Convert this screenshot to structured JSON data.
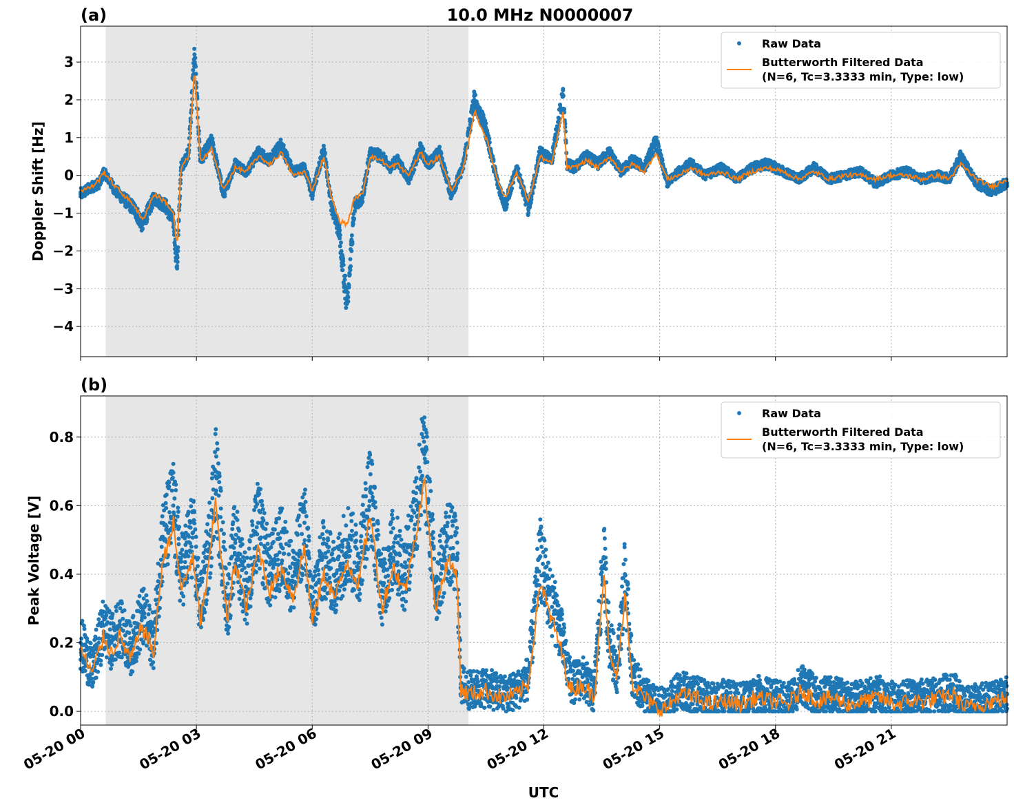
{
  "title": "10.0 MHz N0000007",
  "colors": {
    "raw": "#1f77b4",
    "filtered": "#ff7f0e",
    "shade": "#e6e6e6",
    "grid": "#b0b0b0"
  },
  "legend": {
    "raw_label": "Raw Data",
    "filtered_label_line1": "Butterworth Filtered Data",
    "filtered_label_line2": "(N=6, Tc=3.3333 min, Type: low)",
    "placement": "upper right"
  },
  "xaxis": {
    "label": "UTC",
    "ticks": [
      "05-20 00",
      "05-20 03",
      "05-20 06",
      "05-20 09",
      "05-20 12",
      "05-20 15",
      "05-20 18",
      "05-20 21"
    ],
    "tick_hours": [
      0,
      3,
      6,
      9,
      12,
      15,
      18,
      21
    ],
    "range_hours": [
      0,
      24
    ]
  },
  "chart_data": [
    {
      "type": "line",
      "panel_label": "(a)",
      "title": "10.0 MHz N0000007",
      "xlabel": "UTC",
      "ylabel": "Doppler Shift [Hz]",
      "ylim": [
        -4.8,
        3.95
      ],
      "yticks": [
        3,
        2,
        1,
        0,
        -1,
        -2,
        -3,
        -4
      ],
      "ytick_labels": [
        "3",
        "2",
        "1",
        "0",
        "−1",
        "−2",
        "−3",
        "−4"
      ],
      "grid": true,
      "legend": "upper right",
      "shaded_interval_hours": [
        0.65,
        10.05
      ],
      "series": [
        {
          "name": "Raw Data",
          "style": "scatter",
          "spread": 0.3,
          "x_hours": [
            0,
            0.3,
            0.5,
            0.6,
            0.9,
            1.2,
            1.4,
            1.6,
            1.9,
            2.2,
            2.4,
            2.5,
            2.6,
            2.8,
            2.95,
            3.1,
            3.4,
            3.7,
            4.0,
            4.3,
            4.6,
            4.9,
            5.2,
            5.5,
            5.8,
            6.0,
            6.3,
            6.5,
            6.7,
            6.9,
            7.1,
            7.3,
            7.5,
            7.8,
            8.0,
            8.2,
            8.5,
            8.8,
            9.0,
            9.3,
            9.6,
            9.9,
            10.2,
            10.5,
            10.8,
            11.0,
            11.3,
            11.6,
            11.9,
            12.2,
            12.5,
            12.6,
            12.8,
            13.1,
            13.4,
            13.7,
            14.0,
            14.3,
            14.6,
            14.9,
            15.2,
            15.5,
            15.8,
            16.2,
            16.6,
            17.0,
            17.4,
            17.8,
            18.2,
            18.6,
            19.0,
            19.4,
            19.8,
            20.2,
            20.6,
            21.0,
            21.4,
            21.8,
            22.2,
            22.5,
            22.8,
            23.2,
            23.6,
            24.0
          ],
          "y": [
            -0.5,
            -0.3,
            -0.2,
            0.1,
            -0.4,
            -0.7,
            -0.9,
            -1.3,
            -0.6,
            -0.8,
            -1.2,
            -2.4,
            0.2,
            0.6,
            3.2,
            0.4,
            0.9,
            -0.5,
            0.3,
            0.1,
            0.6,
            0.4,
            0.8,
            0.1,
            0.2,
            -0.5,
            0.7,
            -0.8,
            -1.5,
            -3.4,
            -0.8,
            -0.6,
            0.6,
            0.5,
            0.2,
            0.4,
            -0.1,
            0.7,
            0.3,
            0.6,
            -0.5,
            0.2,
            2.0,
            1.2,
            -0.2,
            -0.8,
            0.2,
            -0.9,
            0.6,
            0.4,
            2.1,
            0.3,
            0.2,
            0.5,
            0.3,
            0.6,
            0.1,
            0.4,
            0.2,
            0.9,
            -0.2,
            0.1,
            0.3,
            0.0,
            0.2,
            -0.1,
            0.2,
            0.3,
            0.1,
            -0.1,
            0.2,
            -0.1,
            0.0,
            0.1,
            -0.2,
            0.0,
            0.1,
            -0.1,
            0.0,
            -0.1,
            0.5,
            -0.2,
            -0.4,
            -0.2
          ]
        },
        {
          "name": "Butterworth Filtered Data (N=6, Tc=3.3333 min, Type: low)",
          "style": "line",
          "x_hours": [
            0,
            0.3,
            0.5,
            0.6,
            0.9,
            1.2,
            1.4,
            1.6,
            1.9,
            2.2,
            2.4,
            2.5,
            2.6,
            2.8,
            2.95,
            3.1,
            3.4,
            3.7,
            4.0,
            4.3,
            4.6,
            4.9,
            5.2,
            5.5,
            5.8,
            6.0,
            6.3,
            6.5,
            6.7,
            6.9,
            7.1,
            7.3,
            7.5,
            7.8,
            8.0,
            8.2,
            8.5,
            8.8,
            9.0,
            9.3,
            9.6,
            9.9,
            10.2,
            10.5,
            10.8,
            11.0,
            11.3,
            11.6,
            11.9,
            12.2,
            12.5,
            12.6,
            12.8,
            13.1,
            13.4,
            13.7,
            14.0,
            14.3,
            14.6,
            14.9,
            15.2,
            15.5,
            15.8,
            16.2,
            16.6,
            17.0,
            17.4,
            17.8,
            18.2,
            18.6,
            19.0,
            19.4,
            19.8,
            20.2,
            20.6,
            21.0,
            21.4,
            21.8,
            22.2,
            22.5,
            22.8,
            23.2,
            23.6,
            24.0
          ],
          "y": [
            -0.4,
            -0.3,
            -0.1,
            0.1,
            -0.3,
            -0.6,
            -0.8,
            -1.2,
            -0.5,
            -0.7,
            -1.0,
            -1.9,
            0.2,
            0.5,
            2.8,
            0.4,
            0.7,
            -0.4,
            0.2,
            0.1,
            0.5,
            0.3,
            0.6,
            0.0,
            0.1,
            -0.4,
            0.5,
            -0.6,
            -1.2,
            -1.3,
            -0.6,
            -0.5,
            0.5,
            0.4,
            0.2,
            0.3,
            0.0,
            0.6,
            0.3,
            0.5,
            -0.4,
            0.1,
            1.7,
            1.0,
            -0.1,
            -0.6,
            0.1,
            -0.7,
            0.5,
            0.3,
            1.7,
            0.2,
            0.2,
            0.4,
            0.2,
            0.5,
            0.1,
            0.3,
            0.1,
            0.6,
            -0.1,
            0.0,
            0.2,
            0.0,
            0.1,
            -0.1,
            0.1,
            0.2,
            0.1,
            -0.1,
            0.1,
            -0.1,
            0.0,
            0.0,
            -0.1,
            0.0,
            0.0,
            -0.1,
            0.0,
            -0.1,
            0.3,
            -0.1,
            -0.3,
            -0.1
          ]
        }
      ]
    },
    {
      "type": "line",
      "panel_label": "(b)",
      "xlabel": "UTC",
      "ylabel": "Peak Voltage [V]",
      "ylim": [
        -0.04,
        0.92
      ],
      "yticks": [
        0.0,
        0.2,
        0.4,
        0.6,
        0.8
      ],
      "ytick_labels": [
        "0.0",
        "0.2",
        "0.4",
        "0.6",
        "0.8"
      ],
      "grid": true,
      "legend": "upper right",
      "shaded_interval_hours": [
        0.65,
        10.05
      ],
      "series": [
        {
          "name": "Raw Data",
          "style": "scatter",
          "spread": 0.12,
          "x_hours": [
            0,
            0.3,
            0.6,
            0.8,
            1.0,
            1.3,
            1.6,
            1.9,
            2.1,
            2.4,
            2.6,
            2.9,
            3.1,
            3.3,
            3.5,
            3.8,
            4.0,
            4.3,
            4.6,
            4.9,
            5.2,
            5.5,
            5.8,
            6.0,
            6.3,
            6.6,
            6.9,
            7.2,
            7.5,
            7.8,
            8.1,
            8.4,
            8.7,
            8.9,
            9.2,
            9.5,
            9.75,
            9.85,
            10.1,
            10.5,
            10.9,
            11.3,
            11.6,
            11.9,
            12.1,
            12.4,
            12.7,
            13.0,
            13.3,
            13.55,
            13.7,
            13.9,
            14.1,
            14.3,
            14.6,
            14.9,
            15.2,
            15.5,
            15.9,
            16.3,
            16.7,
            17.1,
            17.5,
            17.9,
            18.3,
            18.7,
            19.1,
            19.5,
            19.9,
            20.3,
            20.7,
            21.1,
            21.5,
            21.9,
            22.3,
            22.6,
            22.9,
            23.3,
            23.7,
            24.0
          ],
          "y": [
            0.2,
            0.12,
            0.25,
            0.2,
            0.25,
            0.18,
            0.28,
            0.2,
            0.48,
            0.6,
            0.4,
            0.52,
            0.3,
            0.45,
            0.7,
            0.3,
            0.5,
            0.35,
            0.55,
            0.4,
            0.48,
            0.38,
            0.55,
            0.3,
            0.45,
            0.38,
            0.5,
            0.42,
            0.65,
            0.35,
            0.48,
            0.4,
            0.6,
            0.75,
            0.35,
            0.5,
            0.45,
            0.08,
            0.06,
            0.07,
            0.05,
            0.06,
            0.1,
            0.45,
            0.35,
            0.25,
            0.08,
            0.1,
            0.05,
            0.45,
            0.2,
            0.12,
            0.4,
            0.1,
            0.05,
            0.02,
            0.02,
            0.06,
            0.05,
            0.03,
            0.04,
            0.03,
            0.05,
            0.04,
            0.03,
            0.08,
            0.04,
            0.05,
            0.03,
            0.04,
            0.05,
            0.03,
            0.04,
            0.04,
            0.05,
            0.06,
            0.02,
            0.03,
            0.04,
            0.05
          ]
        },
        {
          "name": "Butterworth Filtered Data (N=6, Tc=3.3333 min, Type: low)",
          "style": "line",
          "x_hours": [
            0,
            0.3,
            0.6,
            0.8,
            1.0,
            1.3,
            1.6,
            1.9,
            2.1,
            2.4,
            2.6,
            2.9,
            3.1,
            3.3,
            3.5,
            3.8,
            4.0,
            4.3,
            4.6,
            4.9,
            5.2,
            5.5,
            5.8,
            6.0,
            6.3,
            6.6,
            6.9,
            7.2,
            7.5,
            7.8,
            8.1,
            8.4,
            8.7,
            8.9,
            9.2,
            9.5,
            9.75,
            9.85,
            10.1,
            10.5,
            10.9,
            11.3,
            11.6,
            11.9,
            12.1,
            12.4,
            12.7,
            13.0,
            13.3,
            13.55,
            13.7,
            13.9,
            14.1,
            14.3,
            14.6,
            14.9,
            15.2,
            15.5,
            15.9,
            16.3,
            16.7,
            17.1,
            17.5,
            17.9,
            18.3,
            18.7,
            19.1,
            19.5,
            19.9,
            20.3,
            20.7,
            21.1,
            21.5,
            21.9,
            22.3,
            22.6,
            22.9,
            23.3,
            23.7,
            24.0
          ],
          "y": [
            0.18,
            0.11,
            0.22,
            0.17,
            0.22,
            0.15,
            0.25,
            0.17,
            0.42,
            0.55,
            0.35,
            0.45,
            0.26,
            0.4,
            0.62,
            0.26,
            0.44,
            0.3,
            0.48,
            0.35,
            0.42,
            0.33,
            0.48,
            0.26,
            0.4,
            0.33,
            0.44,
            0.37,
            0.58,
            0.3,
            0.42,
            0.35,
            0.53,
            0.68,
            0.3,
            0.44,
            0.4,
            0.06,
            0.05,
            0.06,
            0.04,
            0.05,
            0.08,
            0.38,
            0.3,
            0.2,
            0.06,
            0.08,
            0.04,
            0.4,
            0.16,
            0.1,
            0.35,
            0.08,
            0.04,
            0.01,
            0.01,
            0.05,
            0.04,
            0.02,
            0.03,
            0.02,
            0.04,
            0.03,
            0.02,
            0.06,
            0.03,
            0.04,
            0.02,
            0.03,
            0.04,
            0.02,
            0.03,
            0.03,
            0.04,
            0.05,
            0.01,
            0.02,
            0.03,
            0.04
          ]
        }
      ]
    }
  ]
}
